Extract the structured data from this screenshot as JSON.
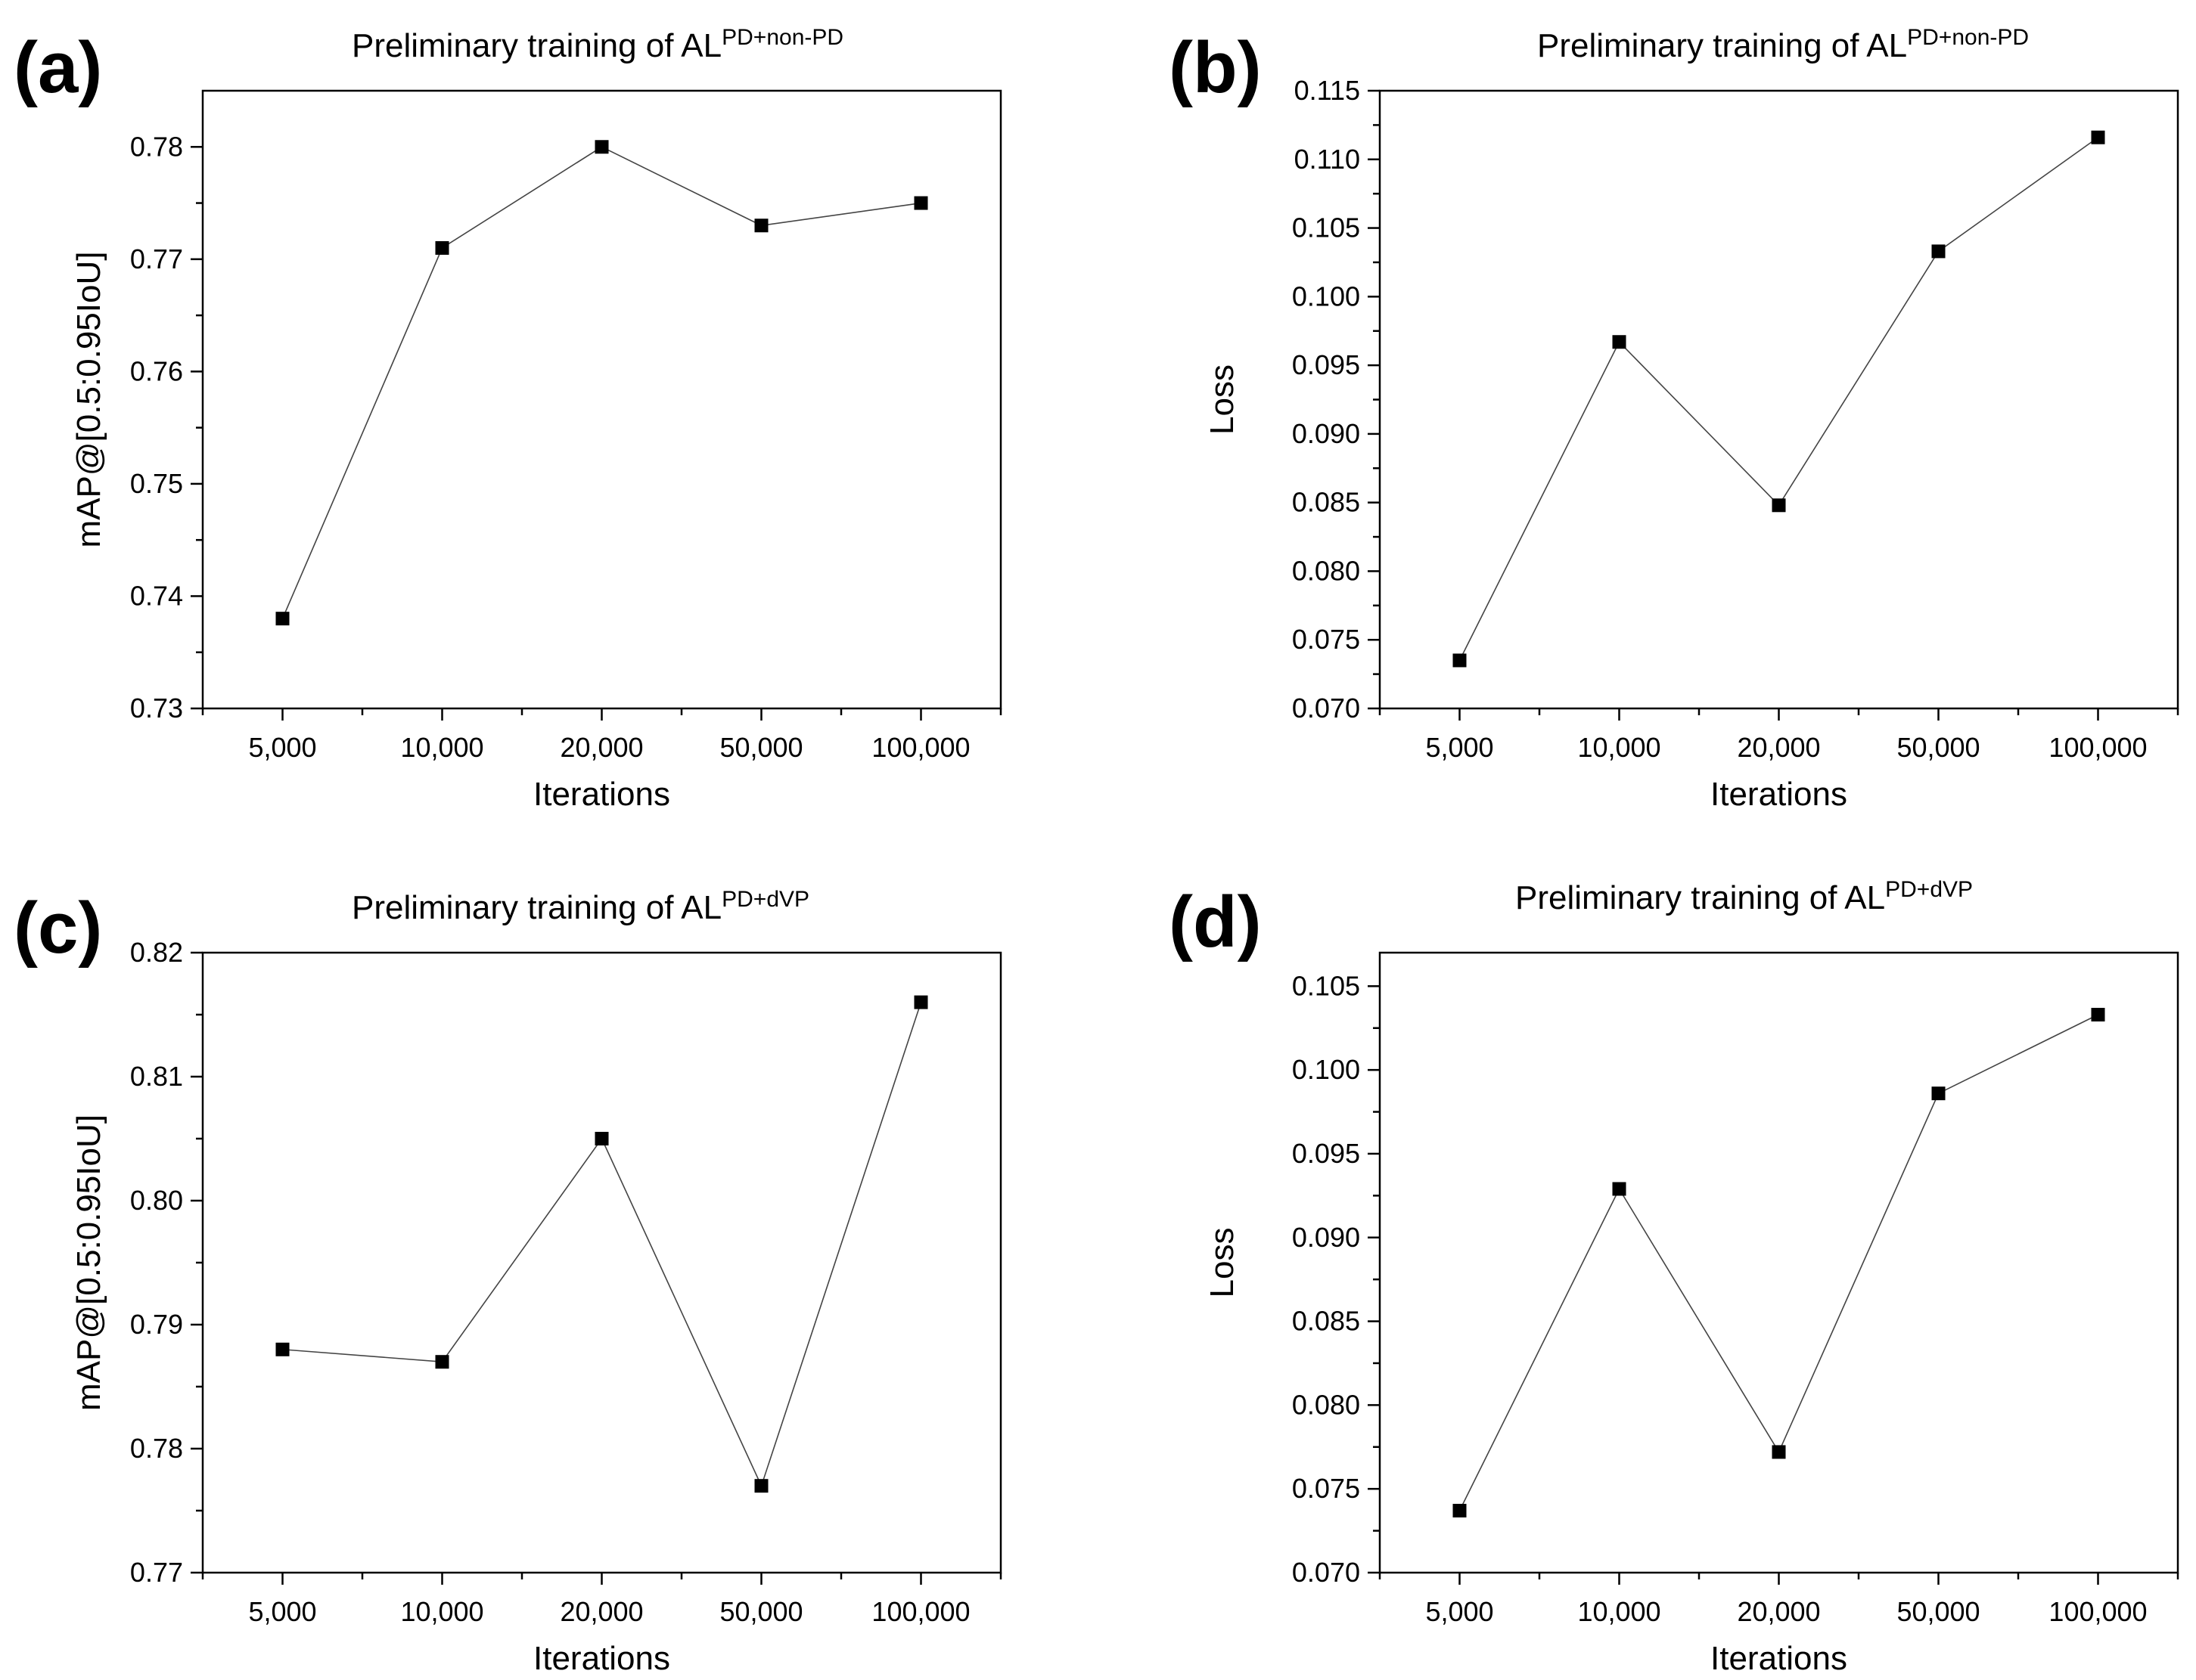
{
  "chart_data": [
    {
      "panel_label": "(a)",
      "type": "line",
      "title": "Preliminary training of AL",
      "title_superscript": "PD+non-PD",
      "xlabel": "Iterations",
      "ylabel": "mAP@[0.5:0.95IoU]",
      "categories": [
        "5,000",
        "10,000",
        "20,000",
        "50,000",
        "100,000"
      ],
      "values": [
        0.738,
        0.771,
        0.78,
        0.773,
        0.775
      ],
      "ylim": [
        0.73,
        0.785
      ],
      "yticks": [
        "0.73",
        "0.74",
        "0.75",
        "0.76",
        "0.77",
        "0.78"
      ],
      "marker": "square",
      "grid": false
    },
    {
      "panel_label": "(b)",
      "type": "line",
      "title": "Preliminary training of AL",
      "title_superscript": "PD+non-PD",
      "xlabel": "Iterations",
      "ylabel": "Loss",
      "categories": [
        "5,000",
        "10,000",
        "20,000",
        "50,000",
        "100,000"
      ],
      "values": [
        0.0735,
        0.0967,
        0.0848,
        0.1033,
        0.1116
      ],
      "ylim": [
        0.07,
        0.115
      ],
      "yticks": [
        "0.070",
        "0.075",
        "0.080",
        "0.085",
        "0.090",
        "0.095",
        "0.100",
        "0.105",
        "0.110",
        "0.115"
      ],
      "marker": "square",
      "grid": false
    },
    {
      "panel_label": "(c)",
      "type": "line",
      "title": "Preliminary training of AL",
      "title_superscript": "PD+dVP",
      "xlabel": "Iterations",
      "ylabel": "mAP@[0.5:0.95IoU]",
      "categories": [
        "5,000",
        "10,000",
        "20,000",
        "50,000",
        "100,000"
      ],
      "values": [
        0.788,
        0.787,
        0.805,
        0.777,
        0.816
      ],
      "ylim": [
        0.77,
        0.82
      ],
      "yticks": [
        "0.77",
        "0.78",
        "0.79",
        "0.80",
        "0.81",
        "0.82"
      ],
      "marker": "square",
      "grid": false
    },
    {
      "panel_label": "(d)",
      "type": "line",
      "title": "Preliminary training of AL",
      "title_superscript": "PD+dVP",
      "xlabel": "Iterations",
      "ylabel": "Loss",
      "categories": [
        "5,000",
        "10,000",
        "20,000",
        "50,000",
        "100,000"
      ],
      "values": [
        0.0737,
        0.0929,
        0.0772,
        0.0986,
        0.1033
      ],
      "ylim": [
        0.07,
        0.107
      ],
      "yticks": [
        "0.070",
        "0.075",
        "0.080",
        "0.085",
        "0.090",
        "0.095",
        "0.100",
        "0.105"
      ],
      "marker": "square",
      "grid": false
    }
  ]
}
